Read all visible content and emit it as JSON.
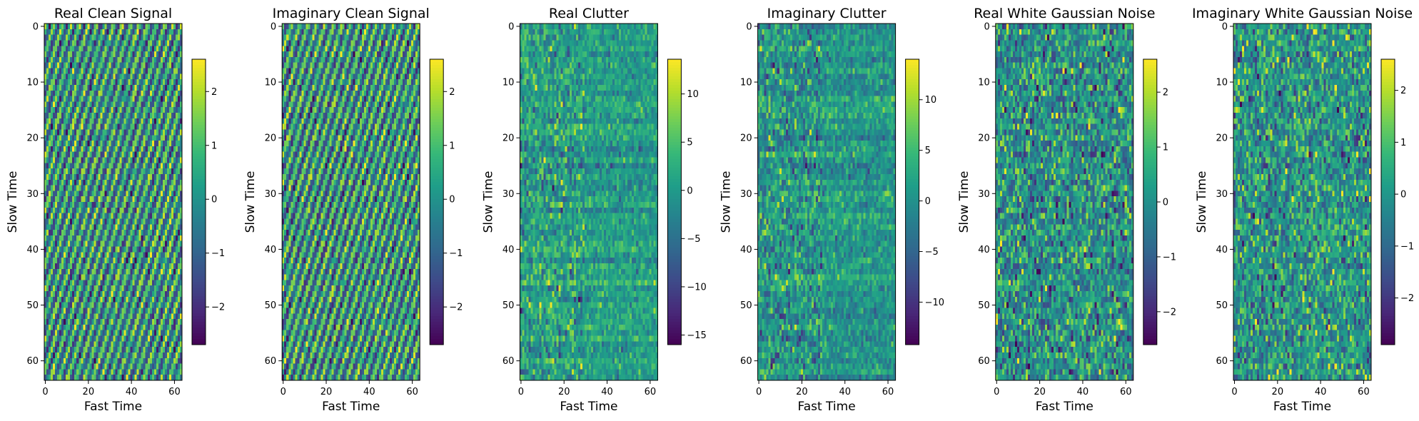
{
  "chart_data": [
    {
      "type": "heatmap",
      "title": "Real Clean Signal",
      "xlabel": "Fast Time",
      "ylabel": "Slow Time",
      "rows": 64,
      "cols": 64,
      "xlim": [
        0,
        63
      ],
      "ylim": [
        63,
        0
      ],
      "xticks": [
        0,
        20,
        40,
        60
      ],
      "yticks": [
        0,
        10,
        20,
        30,
        40,
        50,
        60
      ],
      "colormap": "viridis",
      "pattern": "diagonal",
      "colorbar": {
        "vmin": -2.7,
        "vmax": 2.6,
        "ticks": [
          -2,
          -1,
          0,
          1,
          2
        ],
        "tick_labels": [
          "−2",
          "−1",
          "0",
          "1",
          "2"
        ]
      }
    },
    {
      "type": "heatmap",
      "title": "Imaginary Clean Signal",
      "xlabel": "Fast Time",
      "ylabel": "Slow Time",
      "rows": 64,
      "cols": 64,
      "xlim": [
        0,
        63
      ],
      "ylim": [
        63,
        0
      ],
      "xticks": [
        0,
        20,
        40,
        60
      ],
      "yticks": [
        0,
        10,
        20,
        30,
        40,
        50,
        60
      ],
      "colormap": "viridis",
      "pattern": "diagonal",
      "colorbar": {
        "vmin": -2.7,
        "vmax": 2.6,
        "ticks": [
          -2,
          -1,
          0,
          1,
          2
        ],
        "tick_labels": [
          "−2",
          "−1",
          "0",
          "1",
          "2"
        ]
      }
    },
    {
      "type": "heatmap",
      "title": "Real Clutter",
      "xlabel": "Fast Time",
      "ylabel": "Slow Time",
      "rows": 64,
      "cols": 64,
      "xlim": [
        0,
        63
      ],
      "ylim": [
        63,
        0
      ],
      "xticks": [
        0,
        20,
        40,
        60
      ],
      "yticks": [
        0,
        10,
        20,
        30,
        40,
        50,
        60
      ],
      "colormap": "viridis",
      "pattern": "clutter",
      "colorbar": {
        "vmin": -16.0,
        "vmax": 13.6,
        "ticks": [
          -15,
          -10,
          -5,
          0,
          5,
          10
        ],
        "tick_labels": [
          "−15",
          "−10",
          "−5",
          "0",
          "5",
          "10"
        ]
      }
    },
    {
      "type": "heatmap",
      "title": "Imaginary Clutter",
      "xlabel": "Fast Time",
      "ylabel": "Slow Time",
      "rows": 64,
      "cols": 64,
      "xlim": [
        0,
        63
      ],
      "ylim": [
        63,
        0
      ],
      "xticks": [
        0,
        20,
        40,
        60
      ],
      "yticks": [
        0,
        10,
        20,
        30,
        40,
        50,
        60
      ],
      "colormap": "viridis",
      "pattern": "clutter",
      "colorbar": {
        "vmin": -14.2,
        "vmax": 14.0,
        "ticks": [
          -10,
          -5,
          0,
          5,
          10
        ],
        "tick_labels": [
          "−10",
          "−5",
          "0",
          "5",
          "10"
        ]
      }
    },
    {
      "type": "heatmap",
      "title": "Real White Gaussian Noise",
      "xlabel": "Fast Time",
      "ylabel": "Slow Time",
      "rows": 64,
      "cols": 64,
      "xlim": [
        0,
        63
      ],
      "ylim": [
        63,
        0
      ],
      "xticks": [
        0,
        20,
        40,
        60
      ],
      "yticks": [
        0,
        10,
        20,
        30,
        40,
        50,
        60
      ],
      "colormap": "viridis",
      "pattern": "noise",
      "colorbar": {
        "vmin": -2.6,
        "vmax": 2.6,
        "ticks": [
          -2,
          -1,
          0,
          1,
          2
        ],
        "tick_labels": [
          "−2",
          "−1",
          "0",
          "1",
          "2"
        ]
      }
    },
    {
      "type": "heatmap",
      "title": "Imaginary White Gaussian Noise",
      "xlabel": "Fast Time",
      "ylabel": "Slow Time",
      "rows": 64,
      "cols": 64,
      "xlim": [
        0,
        63
      ],
      "ylim": [
        63,
        0
      ],
      "xticks": [
        0,
        20,
        40,
        60
      ],
      "yticks": [
        0,
        10,
        20,
        30,
        40,
        50,
        60
      ],
      "colormap": "viridis",
      "pattern": "noise",
      "colorbar": {
        "vmin": -2.9,
        "vmax": 2.6,
        "ticks": [
          -2,
          -1,
          0,
          1,
          2
        ],
        "tick_labels": [
          "−2",
          "−1",
          "0",
          "1",
          "2"
        ]
      }
    }
  ]
}
